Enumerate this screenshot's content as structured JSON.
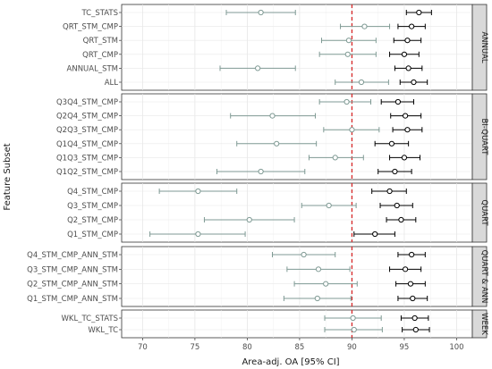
{
  "chart_data": {
    "type": "forest",
    "xlabel": "Area-adj. OA [95% CI]",
    "ylabel": "Feature Subset",
    "xlim": [
      68,
      101.5
    ],
    "xticks": [
      70,
      75,
      80,
      85,
      90,
      95,
      100
    ],
    "reference_line": 90,
    "grid": true,
    "series_colors": {
      "grey": "#7f9a94",
      "black": "#000000"
    },
    "reference_color": "#d62728",
    "panels": [
      {
        "label": "ANNUAL",
        "rows": [
          {
            "name": "TC_STATS",
            "grey": [
              81.3,
              78.0,
              84.6
            ],
            "black": [
              96.4,
              95.2,
              97.6
            ]
          },
          {
            "name": "QRT_STM_CMP",
            "grey": [
              91.2,
              88.9,
              93.6
            ],
            "black": [
              95.7,
              94.4,
              97.0
            ]
          },
          {
            "name": "QRT_STM",
            "grey": [
              89.7,
              87.1,
              92.3
            ],
            "black": [
              95.3,
              94.0,
              96.6
            ]
          },
          {
            "name": "QRT_CMP",
            "grey": [
              89.6,
              86.9,
              92.3
            ],
            "black": [
              95.0,
              93.6,
              96.4
            ]
          },
          {
            "name": "ANNUAL_STM",
            "grey": [
              81.0,
              77.4,
              84.6
            ],
            "black": [
              95.4,
              94.1,
              96.7
            ]
          },
          {
            "name": "ALL",
            "grey": [
              90.9,
              88.4,
              93.5
            ],
            "black": [
              95.9,
              94.6,
              97.2
            ]
          }
        ]
      },
      {
        "label": "BI-QUART",
        "rows": [
          {
            "name": "Q3Q4_STM_CMP",
            "grey": [
              89.5,
              86.9,
              91.8
            ],
            "black": [
              94.4,
              92.8,
              95.9
            ]
          },
          {
            "name": "Q2Q4_STM_CMP",
            "grey": [
              82.4,
              78.4,
              86.5
            ],
            "black": [
              95.1,
              93.7,
              96.6
            ]
          },
          {
            "name": "Q2Q3_STM_CMP",
            "grey": [
              90.0,
              87.3,
              92.6
            ],
            "black": [
              95.3,
              93.9,
              96.7
            ]
          },
          {
            "name": "Q1Q4_STM_CMP",
            "grey": [
              82.8,
              79.0,
              86.6
            ],
            "black": [
              93.8,
              92.2,
              95.4
            ]
          },
          {
            "name": "Q1Q3_STM_CMP",
            "grey": [
              88.4,
              85.9,
              91.1
            ],
            "black": [
              95.0,
              93.6,
              96.5
            ]
          },
          {
            "name": "Q1Q2_STM_CMP",
            "grey": [
              81.3,
              77.1,
              85.5
            ],
            "black": [
              94.1,
              92.5,
              95.7
            ]
          }
        ]
      },
      {
        "label": "QUART",
        "rows": [
          {
            "name": "Q4_STM_CMP",
            "grey": [
              75.3,
              71.6,
              79.0
            ],
            "black": [
              93.6,
              91.9,
              95.2
            ]
          },
          {
            "name": "Q3_STM_CMP",
            "grey": [
              87.8,
              85.2,
              90.4
            ],
            "black": [
              94.3,
              92.7,
              95.8
            ]
          },
          {
            "name": "Q2_STM_CMP",
            "grey": [
              80.2,
              75.9,
              84.5
            ],
            "black": [
              94.7,
              93.3,
              96.1
            ]
          },
          {
            "name": "Q1_STM_CMP",
            "grey": [
              75.3,
              70.7,
              79.8
            ],
            "black": [
              92.2,
              90.2,
              94.1
            ]
          }
        ]
      },
      {
        "label": "QUART & ANN",
        "rows": [
          {
            "name": "Q4_STM_CMP_ANN_STM",
            "grey": [
              85.4,
              82.4,
              88.4
            ],
            "black": [
              95.7,
              94.4,
              97.0
            ]
          },
          {
            "name": "Q3_STM_CMP_ANN_STM",
            "grey": [
              86.8,
              83.8,
              89.8
            ],
            "black": [
              95.1,
              93.6,
              96.6
            ]
          },
          {
            "name": "Q2_STM_CMP_ANN_STM",
            "grey": [
              87.5,
              84.5,
              90.5
            ],
            "black": [
              95.6,
              94.2,
              97.0
            ]
          },
          {
            "name": "Q1_STM_CMP_ANN_STM",
            "grey": [
              86.7,
              83.5,
              89.9
            ],
            "black": [
              95.8,
              94.4,
              97.2
            ]
          }
        ]
      },
      {
        "label": "WEEK",
        "rows": [
          {
            "name": "WKL_TC_STATS",
            "grey": [
              90.1,
              87.4,
              92.8
            ],
            "black": [
              96.0,
              94.7,
              97.3
            ]
          },
          {
            "name": "WKL_TC",
            "grey": [
              90.2,
              87.4,
              92.9
            ],
            "black": [
              96.1,
              94.8,
              97.4
            ]
          }
        ]
      }
    ]
  }
}
